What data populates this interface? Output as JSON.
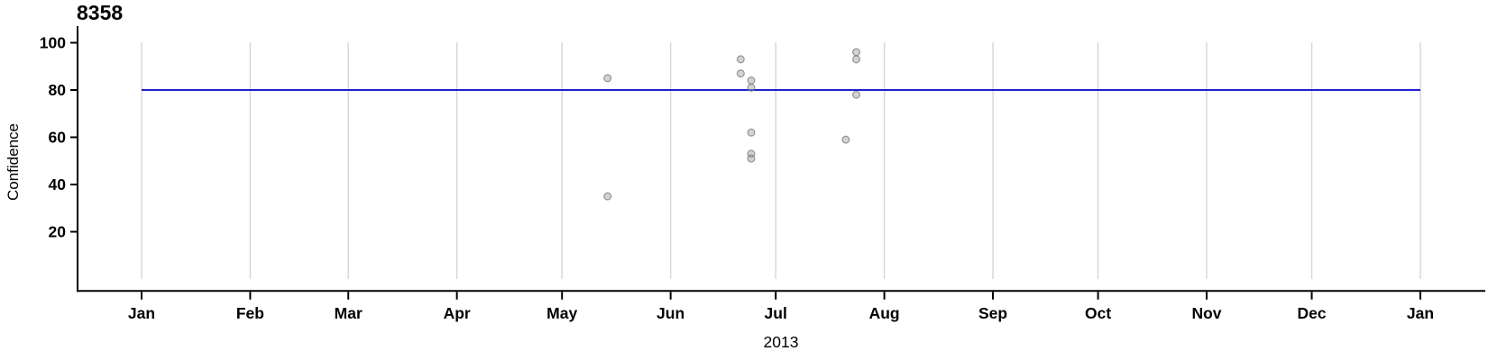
{
  "chart_data": {
    "type": "scatter",
    "title": "8358",
    "ylabel": "Confidence",
    "xlabel": "2013",
    "x_axis": {
      "scale": "time",
      "domain": [
        "2013-01-01",
        "2014-01-01"
      ],
      "tick_dates": [
        "2013-01-01",
        "2013-02-01",
        "2013-03-01",
        "2013-04-01",
        "2013-05-01",
        "2013-06-01",
        "2013-07-01",
        "2013-08-01",
        "2013-09-01",
        "2013-10-01",
        "2013-11-01",
        "2013-12-01",
        "2014-01-01"
      ],
      "tick_labels": [
        "Jan",
        "Feb",
        "Mar",
        "Apr",
        "May",
        "Jun",
        "Jul",
        "Aug",
        "Sep",
        "Oct",
        "Nov",
        "Dec",
        "Jan"
      ],
      "grid": true
    },
    "y_axis": {
      "ticks": [
        20,
        40,
        60,
        80,
        100
      ],
      "lim": [
        0,
        100
      ],
      "grid": false
    },
    "points": [
      {
        "date": "2013-05-14",
        "confidence": 85
      },
      {
        "date": "2013-05-14",
        "confidence": 35
      },
      {
        "date": "2013-06-21",
        "confidence": 93
      },
      {
        "date": "2013-06-21",
        "confidence": 87
      },
      {
        "date": "2013-06-24",
        "confidence": 84
      },
      {
        "date": "2013-06-24",
        "confidence": 81
      },
      {
        "date": "2013-06-24",
        "confidence": 62
      },
      {
        "date": "2013-06-24",
        "confidence": 53
      },
      {
        "date": "2013-06-24",
        "confidence": 51
      },
      {
        "date": "2013-07-21",
        "confidence": 59
      },
      {
        "date": "2013-07-24",
        "confidence": 96
      },
      {
        "date": "2013-07-24",
        "confidence": 93
      },
      {
        "date": "2013-07-24",
        "confidence": 78
      }
    ],
    "reference_line": {
      "y": 80,
      "x_start": "2013-01-01",
      "x_end": "2014-01-01",
      "color": "#0000cd"
    },
    "colors": {
      "gridline": "#d6d6d6",
      "axis": "#000000",
      "point_fill": "rgba(150,150,150,0.42)",
      "point_stroke": "rgba(110,110,110,0.70)",
      "reference": "#0000cd"
    },
    "legend": null
  }
}
